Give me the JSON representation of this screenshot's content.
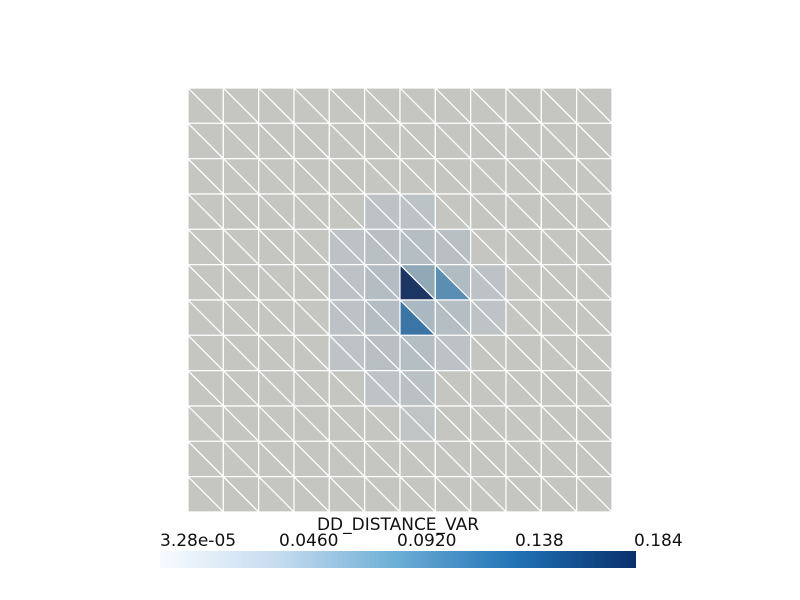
{
  "scalar_bar": {
    "title": "DD_DISTANCE_VAR",
    "ticks": [
      "3.28e-05",
      "0.0460",
      "0.0920",
      "0.138",
      "0.184"
    ],
    "min": 3.28e-05,
    "max": 0.184,
    "colormap": [
      "#f7fbff",
      "#c6dbef",
      "#6baed6",
      "#2171b5",
      "#08306b"
    ]
  },
  "mesh": {
    "grid_cells": 12,
    "base_color": "#c5c6c2",
    "edge_color": "#ffffff",
    "highlighted_triangles": [
      {
        "col": 6,
        "row": 5,
        "half": "lower",
        "color": "#1c3562"
      },
      {
        "col": 6,
        "row": 5,
        "half": "upper",
        "color": "#91a9b7"
      },
      {
        "col": 7,
        "row": 5,
        "half": "lower",
        "color": "#5a8fb3"
      },
      {
        "col": 6,
        "row": 6,
        "half": "lower",
        "color": "#3b75a6"
      },
      {
        "col": 6,
        "row": 6,
        "half": "upper",
        "color": "#a9b8c1"
      }
    ],
    "tinted_cells": [
      {
        "col": 5,
        "row": 3,
        "color": "#bcc2c5"
      },
      {
        "col": 6,
        "row": 3,
        "color": "#bcc3c6"
      },
      {
        "col": 4,
        "row": 4,
        "color": "#bdc3c5"
      },
      {
        "col": 5,
        "row": 4,
        "color": "#b8c0c4"
      },
      {
        "col": 6,
        "row": 4,
        "color": "#b4bec3"
      },
      {
        "col": 7,
        "row": 4,
        "color": "#b8c0c4"
      },
      {
        "col": 4,
        "row": 5,
        "color": "#bcc2c5"
      },
      {
        "col": 5,
        "row": 5,
        "color": "#b3bdc2"
      },
      {
        "col": 7,
        "row": 5,
        "color": "#b1bcc2"
      },
      {
        "col": 8,
        "row": 5,
        "color": "#bcc2c5"
      },
      {
        "col": 4,
        "row": 6,
        "color": "#bcc2c5"
      },
      {
        "col": 5,
        "row": 6,
        "color": "#b3bdc2"
      },
      {
        "col": 7,
        "row": 6,
        "color": "#b5bec3"
      },
      {
        "col": 8,
        "row": 6,
        "color": "#bec4c5"
      },
      {
        "col": 4,
        "row": 7,
        "color": "#bec4c5"
      },
      {
        "col": 5,
        "row": 7,
        "color": "#b8c0c4"
      },
      {
        "col": 6,
        "row": 7,
        "color": "#b5bec3"
      },
      {
        "col": 7,
        "row": 7,
        "color": "#bcc2c5"
      },
      {
        "col": 5,
        "row": 8,
        "color": "#bec4c5"
      },
      {
        "col": 6,
        "row": 8,
        "color": "#bac1c4"
      },
      {
        "col": 6,
        "row": 9,
        "color": "#bfc4c5"
      }
    ]
  }
}
